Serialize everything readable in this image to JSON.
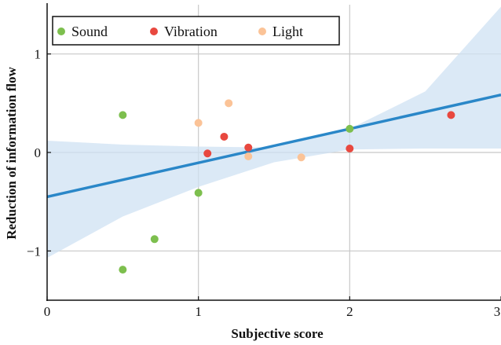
{
  "chart_data": {
    "type": "scatter",
    "xlabel": "Subjective score",
    "ylabel": "Reduction of information flow",
    "xlim": [
      0,
      3
    ],
    "ylim": [
      -1.5,
      1.5
    ],
    "x_ticks": [
      "0",
      "1",
      "2",
      "3"
    ],
    "y_ticks": [
      "1",
      "0",
      "−1"
    ],
    "x_tick_values": [
      0,
      1,
      2,
      3
    ],
    "y_tick_values": [
      1,
      0,
      -1
    ],
    "grid": true,
    "legend_position": "top-left",
    "series": [
      {
        "name": "Sound",
        "color": "#7dbf4e",
        "points": [
          [
            0.5,
            0.38
          ],
          [
            0.5,
            -1.19
          ],
          [
            0.71,
            -0.88
          ],
          [
            1.0,
            -0.41
          ],
          [
            2.0,
            0.24
          ]
        ]
      },
      {
        "name": "Vibration",
        "color": "#e8483f",
        "points": [
          [
            1.06,
            -0.01
          ],
          [
            1.17,
            0.16
          ],
          [
            1.33,
            0.05
          ],
          [
            2.0,
            0.04
          ],
          [
            2.67,
            0.38
          ]
        ]
      },
      {
        "name": "Light",
        "color": "#fbc397",
        "points": [
          [
            1.0,
            0.3
          ],
          [
            1.2,
            0.5
          ],
          [
            1.33,
            -0.04
          ],
          [
            1.68,
            -0.05
          ]
        ]
      }
    ],
    "regression": {
      "color": "#2a87c8",
      "intercept": -0.45,
      "slope": 0.345,
      "band_color": "#cfe2f3",
      "band_upper": [
        [
          0,
          0.12
        ],
        [
          0.5,
          0.08
        ],
        [
          1.0,
          0.06
        ],
        [
          1.5,
          0.05
        ],
        [
          2.0,
          0.24
        ],
        [
          2.5,
          0.62
        ],
        [
          3.0,
          1.48
        ]
      ],
      "band_lower": [
        [
          0,
          -1.07
        ],
        [
          0.5,
          -0.65
        ],
        [
          1.0,
          -0.35
        ],
        [
          1.5,
          -0.1
        ],
        [
          2.0,
          0.03
        ],
        [
          2.5,
          0.04
        ],
        [
          3.0,
          0.04
        ]
      ]
    }
  }
}
